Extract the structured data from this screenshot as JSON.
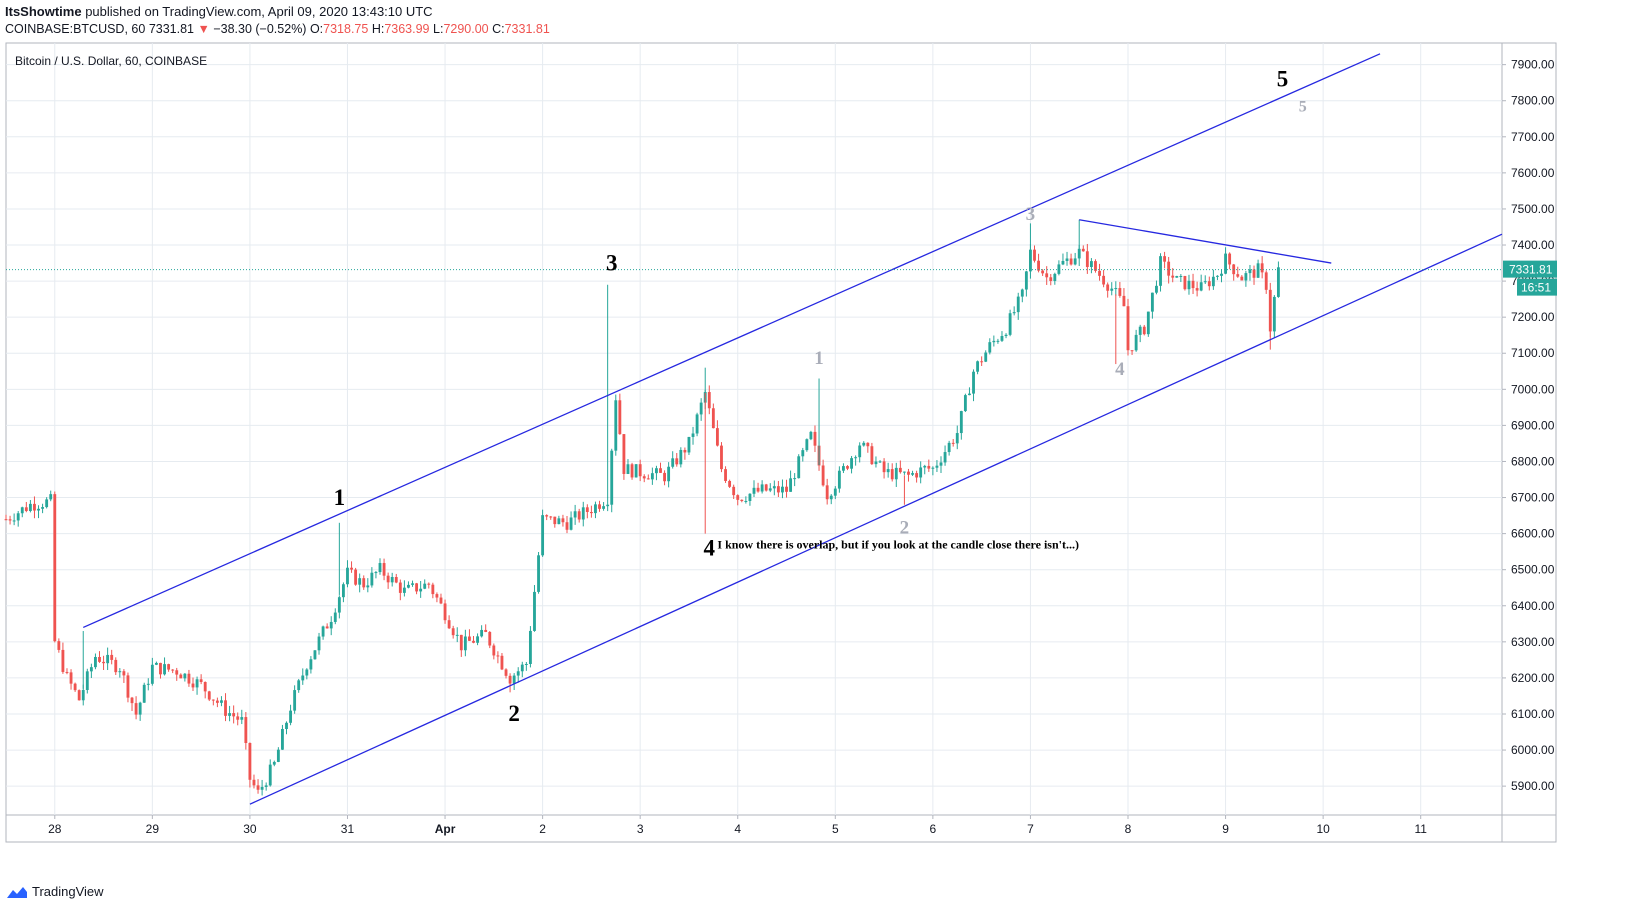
{
  "header": {
    "author": "ItsShowtime",
    "published": "published on TradingView.com, April 09, 2020 13:43:10 UTC",
    "symbol": "COINBASE:BTCUSD, 60",
    "last": "7331.81",
    "arrow": "▼",
    "change": "−38.30 (−0.52%)",
    "o_label": "O:",
    "o": "7318.75",
    "h_label": "H:",
    "h": "7363.99",
    "l_label": "L:",
    "l": "7290.00",
    "c_label": "C:",
    "c": "7331.81"
  },
  "footer": {
    "brand": "TradingView",
    "icon": "tradingview-logo-icon"
  },
  "colors": {
    "up": "#26a69a",
    "down": "#ef5350",
    "channel": "#2628e0",
    "grid": "#e6ebf0",
    "price_line": "#26a69a"
  },
  "chart_data": {
    "type": "candlestick",
    "title": "Bitcoin / U.S. Dollar, 60, COINBASE",
    "ylim": [
      5820,
      7960
    ],
    "xlim": [
      "2020-03-27T12:00",
      "2020-04-11T20:00"
    ],
    "y_ticks": [
      "7900.00",
      "7800.00",
      "7700.00",
      "7600.00",
      "7500.00",
      "7400.00",
      "7300.00",
      "7200.00",
      "7100.00",
      "7000.00",
      "6900.00",
      "6800.00",
      "6700.00",
      "6600.00",
      "6500.00",
      "6400.00",
      "6300.00",
      "6200.00",
      "6100.00",
      "6000.00",
      "5900.00"
    ],
    "x_ticks": [
      {
        "label": "28",
        "date": "2020-03-28"
      },
      {
        "label": "29",
        "date": "2020-03-29"
      },
      {
        "label": "30",
        "date": "2020-03-30"
      },
      {
        "label": "31",
        "date": "2020-03-31"
      },
      {
        "label": "Apr",
        "date": "2020-04-01"
      },
      {
        "label": "2",
        "date": "2020-04-02"
      },
      {
        "label": "3",
        "date": "2020-04-03"
      },
      {
        "label": "4",
        "date": "2020-04-04"
      },
      {
        "label": "5",
        "date": "2020-04-05"
      },
      {
        "label": "6",
        "date": "2020-04-06"
      },
      {
        "label": "7",
        "date": "2020-04-07"
      },
      {
        "label": "8",
        "date": "2020-04-08"
      },
      {
        "label": "9",
        "date": "2020-04-09"
      },
      {
        "label": "10",
        "date": "2020-04-10"
      },
      {
        "label": "11",
        "date": "2020-04-11"
      }
    ],
    "last_price": "7331.81",
    "countdown": "16:51",
    "close_path": [
      [
        "2020-03-27T12:00",
        6640
      ],
      [
        "2020-03-27T18:00",
        6680
      ],
      [
        "2020-03-27T23:00",
        6690
      ],
      [
        "2020-03-28T00:00",
        6300
      ],
      [
        "2020-03-28T03:00",
        6200
      ],
      [
        "2020-03-28T06:00",
        6140
      ],
      [
        "2020-03-28T10:00",
        6260
      ],
      [
        "2020-03-28T16:00",
        6230
      ],
      [
        "2020-03-28T20:00",
        6100
      ],
      [
        "2020-03-29T00:00",
        6230
      ],
      [
        "2020-03-29T06:00",
        6220
      ],
      [
        "2020-03-29T12:00",
        6180
      ],
      [
        "2020-03-29T18:00",
        6110
      ],
      [
        "2020-03-29T22:00",
        6080
      ],
      [
        "2020-03-30T00:00",
        5920
      ],
      [
        "2020-03-30T02:00",
        5880
      ],
      [
        "2020-03-30T06:00",
        5960
      ],
      [
        "2020-03-30T10:00",
        6120
      ],
      [
        "2020-03-30T14:00",
        6240
      ],
      [
        "2020-03-30T20:00",
        6370
      ],
      [
        "2020-03-31T00:00",
        6490
      ],
      [
        "2020-03-31T04:00",
        6460
      ],
      [
        "2020-03-31T08:00",
        6500
      ],
      [
        "2020-03-31T14:00",
        6440
      ],
      [
        "2020-03-31T20:00",
        6460
      ],
      [
        "2020-04-01T00:00",
        6380
      ],
      [
        "2020-04-01T04:00",
        6290
      ],
      [
        "2020-04-01T10:00",
        6320
      ],
      [
        "2020-04-01T16:00",
        6200
      ],
      [
        "2020-04-01T20:00",
        6240
      ],
      [
        "2020-04-02T00:00",
        6640
      ],
      [
        "2020-04-02T06:00",
        6630
      ],
      [
        "2020-04-02T12:00",
        6670
      ],
      [
        "2020-04-02T16:00",
        6700
      ],
      [
        "2020-04-02T18:00",
        6980
      ],
      [
        "2020-04-02T20:00",
        6780
      ],
      [
        "2020-04-03T00:00",
        6770
      ],
      [
        "2020-04-03T06:00",
        6760
      ],
      [
        "2020-04-03T12:00",
        6850
      ],
      [
        "2020-04-03T16:00",
        6990
      ],
      [
        "2020-04-03T20:00",
        6780
      ],
      [
        "2020-04-04T00:00",
        6700
      ],
      [
        "2020-04-04T06:00",
        6720
      ],
      [
        "2020-04-04T12:00",
        6720
      ],
      [
        "2020-04-04T18:00",
        6870
      ],
      [
        "2020-04-04T22:00",
        6710
      ],
      [
        "2020-04-05T00:00",
        6740
      ],
      [
        "2020-04-05T06:00",
        6850
      ],
      [
        "2020-04-05T12:00",
        6770
      ],
      [
        "2020-04-05T18:00",
        6760
      ],
      [
        "2020-04-05T22:00",
        6780
      ],
      [
        "2020-04-06T00:00",
        6780
      ],
      [
        "2020-04-06T06:00",
        6880
      ],
      [
        "2020-04-06T10:00",
        7050
      ],
      [
        "2020-04-06T14:00",
        7120
      ],
      [
        "2020-04-06T18:00",
        7170
      ],
      [
        "2020-04-06T22:00",
        7260
      ],
      [
        "2020-04-07T00:00",
        7380
      ],
      [
        "2020-04-07T04:00",
        7310
      ],
      [
        "2020-04-07T08:00",
        7350
      ],
      [
        "2020-04-07T12:00",
        7380
      ],
      [
        "2020-04-07T16:00",
        7330
      ],
      [
        "2020-04-07T20:00",
        7280
      ],
      [
        "2020-04-07T23:00",
        7230
      ],
      [
        "2020-04-08T00:00",
        7110
      ],
      [
        "2020-04-08T04:00",
        7170
      ],
      [
        "2020-04-08T08:00",
        7350
      ],
      [
        "2020-04-08T12:00",
        7300
      ],
      [
        "2020-04-08T18:00",
        7280
      ],
      [
        "2020-04-08T22:00",
        7320
      ],
      [
        "2020-04-09T00:00",
        7360
      ],
      [
        "2020-04-09T04:00",
        7310
      ],
      [
        "2020-04-09T08:00",
        7330
      ],
      [
        "2020-04-09T10:00",
        7290
      ],
      [
        "2020-04-09T11:00",
        7170
      ],
      [
        "2020-04-09T13:00",
        7331.81
      ]
    ],
    "spikes": [
      {
        "t": "2020-03-28T07:00",
        "price": 6330
      },
      {
        "t": "2020-03-30T22:00",
        "price": 6630
      },
      {
        "t": "2020-04-01T16:00",
        "price": 6160
      },
      {
        "t": "2020-04-02T16:00",
        "price": 7290
      },
      {
        "t": "2020-04-03T16:00",
        "price": 7060
      },
      {
        "t": "2020-04-03T16:00",
        "price": 6600
      },
      {
        "t": "2020-04-04T20:00",
        "price": 7030
      },
      {
        "t": "2020-04-05T17:00",
        "price": 6680
      },
      {
        "t": "2020-04-07T00:00",
        "price": 7460
      },
      {
        "t": "2020-04-07T12:00",
        "price": 7470
      },
      {
        "t": "2020-04-07T21:00",
        "price": 7070
      },
      {
        "t": "2020-04-09T11:00",
        "price": 7110
      }
    ],
    "channel_upper": [
      [
        "2020-03-28T07:00",
        6340
      ],
      [
        "2020-04-10T14:00",
        7930
      ]
    ],
    "channel_lower": [
      [
        "2020-03-30T00:00",
        5850
      ],
      [
        "2020-04-11T20:00",
        7430
      ]
    ],
    "triangle_top": [
      [
        "2020-04-07T12:00",
        7470
      ],
      [
        "2020-04-10T02:00",
        7350
      ]
    ],
    "wave_labels": [
      {
        "text": "1",
        "t": "2020-03-30T22:00",
        "price": 6680,
        "color": "#000000",
        "size": 23
      },
      {
        "text": "2",
        "t": "2020-04-01T17:00",
        "price": 6080,
        "color": "#000000",
        "size": 23
      },
      {
        "text": "3",
        "t": "2020-04-02T17:00",
        "price": 7330,
        "color": "#000000",
        "size": 23
      },
      {
        "text": "4",
        "t": "2020-04-03T17:00",
        "price": 6540,
        "color": "#000000",
        "size": 23
      },
      {
        "text": "5",
        "t": "2020-04-09T14:00",
        "price": 7840,
        "color": "#000000",
        "size": 23
      },
      {
        "text": "1",
        "t": "2020-04-04T20:00",
        "price": 7070,
        "color": "#a9adb8",
        "size": 19
      },
      {
        "text": "2",
        "t": "2020-04-05T17:00",
        "price": 6600,
        "color": "#a9adb8",
        "size": 19
      },
      {
        "text": "3",
        "t": "2020-04-07T00:00",
        "price": 7470,
        "color": "#a9adb8",
        "size": 19
      },
      {
        "text": "4",
        "t": "2020-04-07T22:00",
        "price": 7040,
        "color": "#a9adb8",
        "size": 19
      },
      {
        "text": "5",
        "t": "2020-04-09T19:00",
        "price": 7770,
        "color": "#a9adb8",
        "size": 16
      }
    ],
    "note": {
      "text": "I know there is overlap, but if you look at the candle close there isn't...)",
      "t": "2020-04-03T19:00",
      "price": 6570
    }
  }
}
